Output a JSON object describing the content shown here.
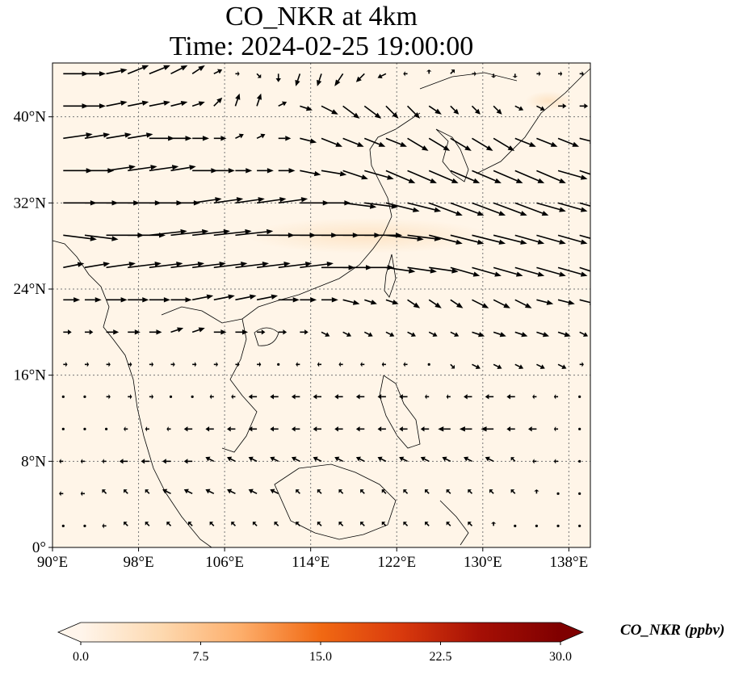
{
  "title": {
    "line1": "CO_NKR at 4km",
    "line2": "Time: 2024-02-25 19:00:00"
  },
  "map": {
    "lon_range": [
      90,
      140
    ],
    "lat_range": [
      0,
      45
    ],
    "lon_ticks": [
      {
        "value": 90,
        "label": "90°E"
      },
      {
        "value": 98,
        "label": "98°E"
      },
      {
        "value": 106,
        "label": "106°E"
      },
      {
        "value": 114,
        "label": "114°E"
      },
      {
        "value": 122,
        "label": "122°E"
      },
      {
        "value": 130,
        "label": "130°E"
      },
      {
        "value": 138,
        "label": "138°E"
      }
    ],
    "lat_ticks": [
      {
        "value": 0,
        "label": "0°"
      },
      {
        "value": 8,
        "label": "8°N"
      },
      {
        "value": 16,
        "label": "16°N"
      },
      {
        "value": 24,
        "label": "24°N"
      },
      {
        "value": 32,
        "label": "32°N"
      },
      {
        "value": 40,
        "label": "40°N"
      }
    ],
    "gridlines": true,
    "field_base_color": "#fff5e8"
  },
  "colorbar": {
    "label": "CO_NKR (ppbv)",
    "range": [
      0,
      30
    ],
    "extend": "both",
    "ticks": [
      {
        "value": 0,
        "label": "0.0"
      },
      {
        "value": 7.5,
        "label": "7.5"
      },
      {
        "value": 15,
        "label": "15.0"
      },
      {
        "value": 22.5,
        "label": "22.5"
      },
      {
        "value": 30,
        "label": "30.0"
      }
    ],
    "stops": [
      "#fff5eb",
      "#fdd9b0",
      "#fdae6b",
      "#f16913",
      "#d93a0d",
      "#a50f05",
      "#7f0000"
    ]
  },
  "wind_field": {
    "rows": [
      {
        "lat": 44,
        "lon_start": 91,
        "u": [
          6,
          5,
          5,
          5,
          5,
          4,
          3,
          2,
          1,
          1,
          0,
          -1,
          -1,
          -2,
          -2,
          -2,
          -1,
          0,
          1,
          1,
          0,
          0,
          1,
          1,
          1,
          0
        ],
        "v": [
          0,
          0,
          1,
          2,
          2,
          2,
          2,
          1,
          0,
          -1,
          -2,
          -3,
          -3,
          -3,
          -2,
          -1,
          0,
          1,
          1,
          0,
          -1,
          -1,
          0,
          0,
          0,
          0
        ]
      },
      {
        "lat": 41,
        "lon_start": 91,
        "u": [
          6,
          5,
          5,
          5,
          5,
          4,
          3,
          2,
          1,
          1,
          2,
          3,
          4,
          4,
          4,
          3,
          3,
          3,
          2,
          2,
          2,
          2,
          2,
          2,
          2,
          2
        ],
        "v": [
          0,
          0,
          1,
          1,
          1,
          1,
          1,
          2,
          3,
          3,
          1,
          -1,
          -2,
          -3,
          -3,
          -3,
          -3,
          -2,
          -2,
          -2,
          -2,
          -1,
          -1,
          0,
          0,
          0
        ]
      },
      {
        "lat": 38,
        "lon_start": 91,
        "u": [
          7,
          6,
          6,
          6,
          6,
          5,
          4,
          3,
          2,
          2,
          3,
          4,
          5,
          5,
          5,
          5,
          5,
          5,
          5,
          5,
          5,
          5,
          5,
          5,
          4,
          4
        ],
        "v": [
          1,
          1,
          1,
          1,
          0,
          0,
          0,
          0,
          1,
          1,
          0,
          -1,
          -2,
          -2,
          -2,
          -2,
          -3,
          -3,
          -3,
          -3,
          -3,
          -2,
          -2,
          -2,
          -1,
          0
        ]
      },
      {
        "lat": 35,
        "lon_start": 91,
        "u": [
          7,
          7,
          7,
          7,
          7,
          6,
          6,
          5,
          4,
          4,
          4,
          5,
          6,
          6,
          7,
          7,
          7,
          7,
          7,
          7,
          7,
          7,
          7,
          7,
          6,
          6
        ],
        "v": [
          0,
          0,
          1,
          1,
          1,
          1,
          0,
          0,
          0,
          0,
          0,
          -1,
          -1,
          -2,
          -2,
          -3,
          -3,
          -3,
          -3,
          -3,
          -3,
          -3,
          -3,
          -2,
          -2,
          -1
        ]
      },
      {
        "lat": 32,
        "lon_start": 91,
        "u": [
          8,
          8,
          8,
          8,
          8,
          7,
          7,
          7,
          7,
          7,
          7,
          7,
          7,
          8,
          8,
          8,
          8,
          8,
          8,
          8,
          8,
          8,
          7,
          7,
          7,
          6
        ],
        "v": [
          0,
          0,
          0,
          0,
          0,
          0,
          1,
          1,
          1,
          1,
          1,
          0,
          0,
          -1,
          -1,
          -2,
          -2,
          -3,
          -3,
          -3,
          -3,
          -3,
          -2,
          -2,
          -2,
          -1
        ]
      },
      {
        "lat": 29,
        "lon_start": 91,
        "u": [
          8,
          8,
          9,
          9,
          9,
          9,
          9,
          9,
          9,
          9,
          9,
          9,
          9,
          9,
          9,
          9,
          8,
          8,
          8,
          8,
          8,
          7,
          7,
          7,
          7,
          6
        ],
        "v": [
          -1,
          -1,
          0,
          0,
          1,
          1,
          1,
          1,
          1,
          0,
          0,
          0,
          0,
          0,
          0,
          -1,
          -1,
          -2,
          -2,
          -2,
          -2,
          -2,
          -2,
          -2,
          -2,
          -1
        ]
      },
      {
        "lat": 26,
        "lon_start": 91,
        "u": [
          5,
          6,
          7,
          8,
          8,
          8,
          8,
          8,
          8,
          8,
          8,
          8,
          8,
          7,
          7,
          7,
          7,
          7,
          7,
          7,
          7,
          7,
          7,
          7,
          6,
          6
        ],
        "v": [
          1,
          1,
          1,
          1,
          1,
          1,
          1,
          1,
          1,
          1,
          1,
          1,
          0,
          0,
          0,
          -1,
          -1,
          -1,
          -2,
          -2,
          -2,
          -2,
          -2,
          -2,
          -2,
          -2
        ]
      },
      {
        "lat": 23,
        "lon_start": 91,
        "u": [
          4,
          4,
          5,
          5,
          5,
          5,
          5,
          5,
          5,
          5,
          5,
          4,
          4,
          4,
          3,
          3,
          3,
          3,
          3,
          4,
          4,
          4,
          4,
          4,
          4,
          3
        ],
        "v": [
          0,
          0,
          0,
          0,
          0,
          0,
          1,
          1,
          1,
          1,
          0,
          0,
          0,
          -1,
          -1,
          -1,
          -2,
          -2,
          -2,
          -2,
          -2,
          -2,
          -1,
          -1,
          -1,
          -1
        ]
      },
      {
        "lat": 20,
        "lon_start": 91,
        "u": [
          2,
          2,
          3,
          3,
          3,
          3,
          3,
          3,
          3,
          2,
          2,
          2,
          2,
          2,
          2,
          2,
          2,
          2,
          2,
          3,
          3,
          3,
          3,
          3,
          2,
          2
        ],
        "v": [
          0,
          0,
          0,
          0,
          0,
          1,
          1,
          0,
          0,
          0,
          0,
          0,
          -1,
          -1,
          -1,
          -1,
          -1,
          -1,
          -1,
          -1,
          -1,
          -1,
          -1,
          -1,
          -1,
          0
        ]
      },
      {
        "lat": 17,
        "lon_start": 91,
        "u": [
          1,
          1,
          1,
          1,
          1,
          1,
          1,
          1,
          1,
          1,
          0,
          -1,
          -1,
          -1,
          -1,
          -1,
          -1,
          0,
          1,
          2,
          2,
          2,
          2,
          2,
          1,
          1
        ],
        "v": [
          0,
          0,
          0,
          0,
          0,
          0,
          0,
          0,
          0,
          0,
          0,
          0,
          0,
          0,
          0,
          0,
          0,
          0,
          -1,
          -1,
          -1,
          -1,
          -1,
          -1,
          0,
          0
        ]
      },
      {
        "lat": 14,
        "lon_start": 91,
        "u": [
          0,
          0,
          1,
          1,
          1,
          0,
          0,
          -1,
          -1,
          -2,
          -2,
          -2,
          -2,
          -2,
          -2,
          -2,
          -2,
          -1,
          -1,
          -2,
          -2,
          -2,
          -1,
          -1,
          0,
          0
        ],
        "v": [
          0,
          0,
          0,
          0,
          0,
          0,
          0,
          0,
          0,
          0,
          0,
          0,
          0,
          0,
          0,
          0,
          0,
          0,
          0,
          0,
          0,
          0,
          0,
          0,
          0,
          0
        ]
      },
      {
        "lat": 11,
        "lon_start": 91,
        "u": [
          0,
          0,
          0,
          -1,
          -1,
          -1,
          -2,
          -2,
          -2,
          -2,
          -2,
          -2,
          -2,
          -2,
          -2,
          -2,
          -2,
          -2,
          -3,
          -3,
          -3,
          -2,
          -2,
          -1,
          0,
          0
        ],
        "v": [
          0,
          0,
          0,
          0,
          0,
          0,
          0,
          0,
          0,
          0,
          0,
          0,
          0,
          0,
          0,
          0,
          0,
          0,
          0,
          0,
          0,
          0,
          0,
          0,
          0,
          0
        ]
      },
      {
        "lat": 8,
        "lon_start": 91,
        "u": [
          -1,
          -1,
          -1,
          -2,
          -2,
          -2,
          -2,
          -2,
          -2,
          -2,
          -2,
          -2,
          -2,
          -2,
          -2,
          -2,
          -2,
          -2,
          -2,
          -2,
          -2,
          -1,
          -1,
          -1,
          0,
          0
        ],
        "v": [
          0,
          0,
          0,
          0,
          0,
          0,
          0,
          1,
          1,
          1,
          1,
          1,
          1,
          1,
          1,
          1,
          1,
          1,
          1,
          1,
          1,
          1,
          0,
          0,
          0,
          0
        ]
      },
      {
        "lat": 5,
        "lon_start": 91,
        "u": [
          -1,
          -1,
          -1,
          -1,
          -1,
          -2,
          -2,
          -2,
          -2,
          -2,
          -2,
          -1,
          -1,
          -1,
          -1,
          -1,
          -1,
          -1,
          -1,
          -1,
          -1,
          -1,
          0,
          0,
          0,
          0
        ],
        "v": [
          0,
          0,
          1,
          1,
          1,
          1,
          1,
          1,
          1,
          1,
          1,
          1,
          1,
          1,
          1,
          1,
          1,
          1,
          1,
          1,
          1,
          1,
          1,
          0,
          0,
          0
        ]
      },
      {
        "lat": 2,
        "lon_start": 91,
        "u": [
          0,
          0,
          -1,
          -1,
          -1,
          -1,
          -1,
          -1,
          -1,
          -1,
          -1,
          -1,
          -1,
          -1,
          -1,
          -1,
          -1,
          -1,
          -1,
          -1,
          0,
          0,
          0,
          0,
          0,
          0
        ],
        "v": [
          0,
          0,
          0,
          1,
          1,
          1,
          1,
          1,
          1,
          1,
          1,
          1,
          1,
          1,
          1,
          1,
          1,
          1,
          1,
          1,
          1,
          0,
          0,
          0,
          0,
          0
        ]
      }
    ]
  }
}
